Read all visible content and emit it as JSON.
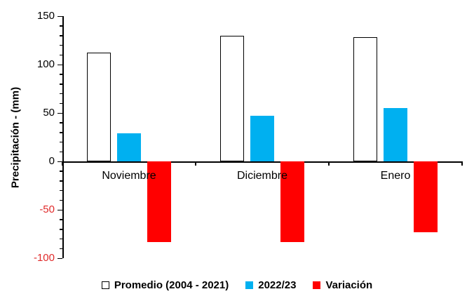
{
  "chart_data": {
    "type": "bar",
    "title": "",
    "xlabel": "",
    "ylabel": "Precipitación - (mm)",
    "categories": [
      "Noviembre",
      "Diciembre",
      "Enero"
    ],
    "series": [
      {
        "key": "promedio",
        "name": "Promedio (2004 - 2021)",
        "values": [
          112,
          130,
          128
        ],
        "fill": "#ffffff",
        "border": "#000000"
      },
      {
        "key": "2022-23",
        "name": "2022/23",
        "values": [
          29,
          47,
          55
        ],
        "fill": "#00b0f0",
        "border": ""
      },
      {
        "key": "variacion",
        "name": "Variación",
        "values": [
          -83,
          -83,
          -73
        ],
        "fill": "#ff0000",
        "border": ""
      }
    ],
    "ylim": [
      -100,
      150
    ],
    "yticks": [
      150,
      100,
      50,
      0,
      -50,
      -100
    ],
    "minor_tick_step": 10,
    "grid": false,
    "legend_position": "bottom",
    "colors": {
      "axis": "#000000",
      "positive_tick_label": "#000000",
      "negative_tick_label": "#e02b2b",
      "background": "#ffffff"
    }
  }
}
